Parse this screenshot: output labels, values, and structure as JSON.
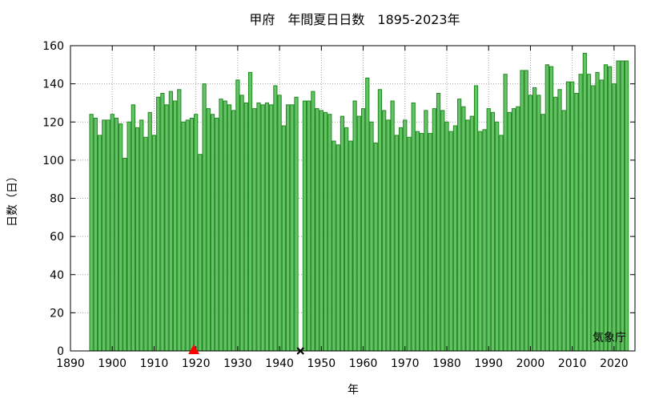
{
  "chart_data": {
    "type": "bar",
    "title": "甲府　年間夏日日数　1895-2023年",
    "xlabel": "年",
    "ylabel": "日数（日）",
    "source_label": "気象庁",
    "xlim": [
      1890,
      2025
    ],
    "ylim": [
      0,
      160
    ],
    "xticks": [
      1890,
      1900,
      1910,
      1920,
      1930,
      1940,
      1950,
      1960,
      1970,
      1980,
      1990,
      2000,
      2010,
      2020
    ],
    "yticks": [
      0,
      20,
      40,
      60,
      80,
      100,
      120,
      140,
      160
    ],
    "grid": true,
    "bar_fill": "#66c266",
    "bar_stroke": "#1f8a1f",
    "x_start": 1895,
    "values": [
      124,
      122,
      113,
      121,
      121,
      124,
      122,
      119,
      101,
      120,
      129,
      117,
      121,
      112,
      125,
      113,
      133,
      135,
      129,
      136,
      131,
      137,
      120,
      121,
      122,
      124,
      103,
      140,
      127,
      124,
      122,
      132,
      131,
      129,
      126,
      142,
      134,
      130,
      146,
      127,
      130,
      129,
      130,
      129,
      139,
      134,
      118,
      129,
      129,
      133,
      null,
      131,
      131,
      136,
      127,
      126,
      125,
      124,
      110,
      108,
      123,
      117,
      110,
      131,
      123,
      127,
      143,
      120,
      109,
      137,
      126,
      121,
      131,
      113,
      117,
      121,
      112,
      130,
      115,
      114,
      126,
      114,
      127,
      135,
      126,
      120,
      115,
      118,
      132,
      128,
      121,
      123,
      139,
      115,
      116,
      127,
      125,
      120,
      113,
      145,
      125,
      127,
      128,
      147,
      147,
      134,
      138,
      134,
      124,
      150,
      149,
      133,
      137,
      126,
      141,
      141,
      135,
      145,
      156,
      145,
      139,
      146,
      142,
      150,
      149,
      140,
      152,
      152,
      152
    ],
    "markers": [
      {
        "type": "triangle",
        "x": 1919.5,
        "y": 0,
        "color": "#ff0000"
      },
      {
        "type": "cross",
        "x": 1945,
        "y": 0,
        "color": "#000000"
      }
    ]
  }
}
